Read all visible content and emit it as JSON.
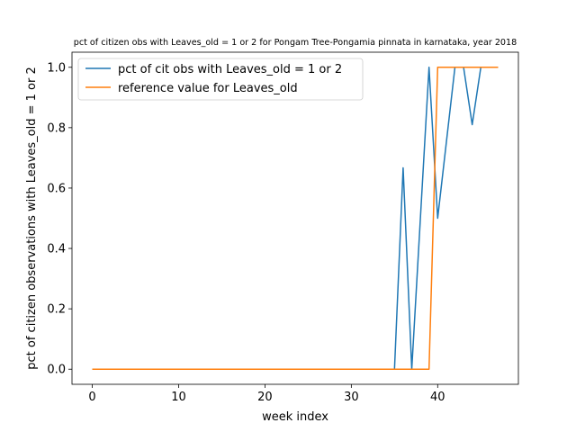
{
  "chart_data": {
    "type": "line",
    "title": "pct of citizen obs with Leaves_old = 1 or 2 for Pongam Tree-Pongamia pinnata in karnataka, year 2018",
    "xlabel": "week index",
    "ylabel": "pct of citizen observations with Leaves_old = 1 or 2",
    "xlim": [
      -2.35,
      49.35
    ],
    "ylim": [
      -0.05,
      1.05
    ],
    "xticks": [
      0,
      10,
      20,
      30,
      40
    ],
    "xtick_labels": [
      "0",
      "10",
      "20",
      "30",
      "40"
    ],
    "yticks": [
      0.0,
      0.2,
      0.4,
      0.6,
      0.8,
      1.0
    ],
    "ytick_labels": [
      "0.0",
      "0.2",
      "0.4",
      "0.6",
      "0.8",
      "1.0"
    ],
    "grid": false,
    "legend_position": "upper-left",
    "series": [
      {
        "name": "pct of cit obs with Leaves_old = 1 or 2",
        "color": "#1f77b4",
        "x": [
          0,
          1,
          2,
          3,
          4,
          5,
          6,
          7,
          8,
          9,
          10,
          11,
          12,
          13,
          14,
          15,
          16,
          17,
          18,
          19,
          20,
          21,
          22,
          23,
          24,
          25,
          26,
          27,
          28,
          29,
          30,
          31,
          32,
          33,
          34,
          35,
          36,
          37,
          38,
          39,
          40,
          41,
          42,
          43,
          44,
          45,
          46,
          47
        ],
        "values": [
          0,
          0,
          0,
          0,
          0,
          0,
          0,
          0,
          0,
          0,
          0,
          0,
          0,
          0,
          0,
          0,
          0,
          0,
          0,
          0,
          0,
          0,
          0,
          0,
          0,
          0,
          0,
          0,
          0,
          0,
          0,
          0,
          0,
          0,
          0,
          0,
          0.667,
          0,
          0.5,
          1,
          0.5,
          0.75,
          1,
          1,
          0.81,
          1,
          1,
          1
        ]
      },
      {
        "name": "reference value for Leaves_old",
        "color": "#ff7f0e",
        "x": [
          0,
          1,
          2,
          3,
          4,
          5,
          6,
          7,
          8,
          9,
          10,
          11,
          12,
          13,
          14,
          15,
          16,
          17,
          18,
          19,
          20,
          21,
          22,
          23,
          24,
          25,
          26,
          27,
          28,
          29,
          30,
          31,
          32,
          33,
          34,
          35,
          36,
          37,
          38,
          39,
          40,
          41,
          42,
          43,
          44,
          45,
          46,
          47
        ],
        "values": [
          0,
          0,
          0,
          0,
          0,
          0,
          0,
          0,
          0,
          0,
          0,
          0,
          0,
          0,
          0,
          0,
          0,
          0,
          0,
          0,
          0,
          0,
          0,
          0,
          0,
          0,
          0,
          0,
          0,
          0,
          0,
          0,
          0,
          0,
          0,
          0,
          0,
          0,
          0,
          0,
          1,
          1,
          1,
          1,
          1,
          1,
          1,
          1
        ]
      }
    ]
  }
}
